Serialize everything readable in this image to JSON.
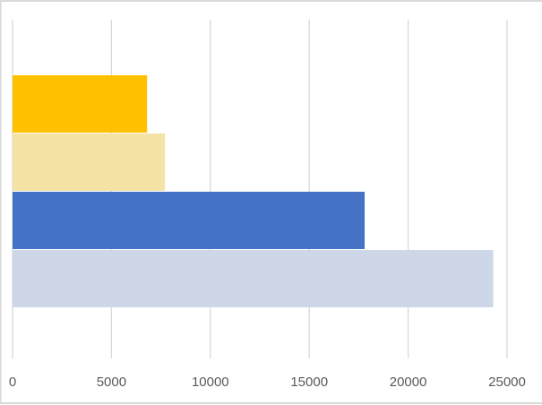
{
  "chart_data": {
    "type": "hbar",
    "categories": [
      null,
      null,
      null,
      null
    ],
    "values": [
      6800,
      7700,
      17800,
      24300
    ],
    "colors": [
      "#ffc000",
      "#f5e2a5",
      "#4472c4",
      "#cdd7e8"
    ],
    "xlim": [
      0,
      25000
    ],
    "xticks": [
      0,
      5000,
      10000,
      15000,
      20000,
      25000
    ],
    "grid": true
  }
}
